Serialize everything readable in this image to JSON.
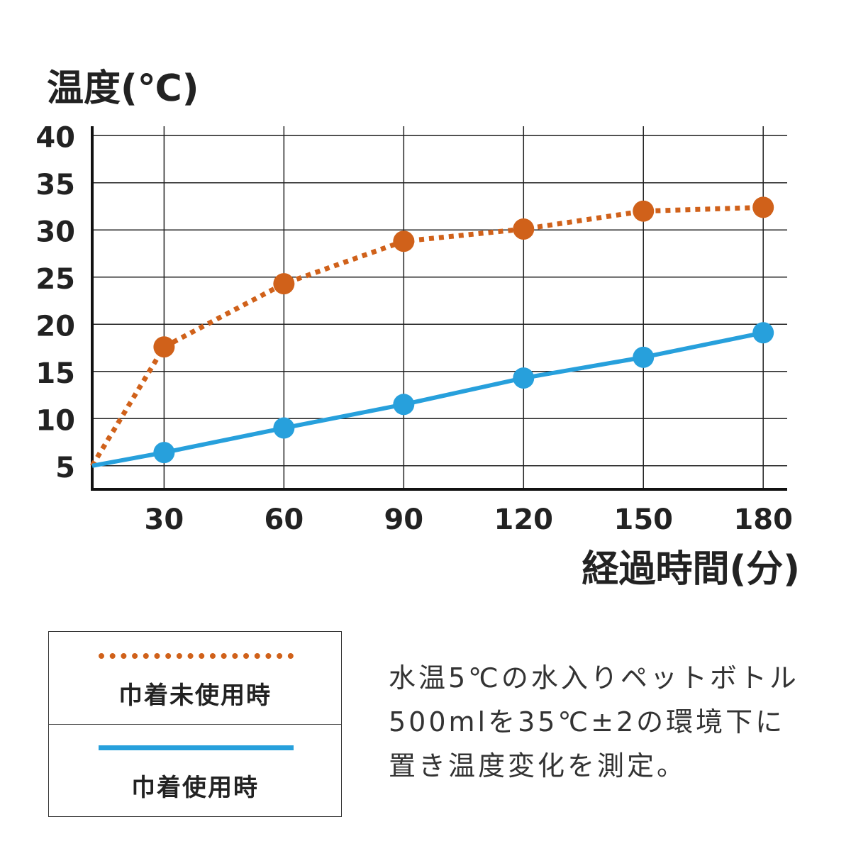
{
  "chart_data": {
    "type": "line",
    "ylabel": "温度(℃)",
    "xlabel": "経過時間(分)",
    "x_ticks": [
      "30",
      "60",
      "90",
      "120",
      "150",
      "180"
    ],
    "y_ticks": [
      "5",
      "10",
      "15",
      "20",
      "25",
      "30",
      "35",
      "40"
    ],
    "xlim": [
      12,
      186
    ],
    "ylim": [
      2.5,
      41
    ],
    "grid": true,
    "legend_placement": "bottom-left",
    "series": [
      {
        "name": "巾着未使用時",
        "style": "dotted",
        "color": "#d0611a",
        "x": [
          12,
          30,
          60,
          90,
          120,
          150,
          180
        ],
        "y": [
          5,
          17.6,
          24.3,
          28.8,
          30.1,
          32.0,
          32.4
        ]
      },
      {
        "name": "巾着使用時",
        "style": "solid",
        "color": "#27a0dc",
        "x": [
          12,
          30,
          60,
          90,
          120,
          150,
          180
        ],
        "y": [
          5,
          6.4,
          9.0,
          11.5,
          14.3,
          16.5,
          19.1
        ]
      }
    ]
  },
  "legend": {
    "item1": "巾着未使用時",
    "item2": "巾着使用時"
  },
  "note": {
    "line1": "水温5℃の水入りペットボトル",
    "line2": "500mlを35℃±2の環境下に",
    "line3": "置き温度変化を測定。"
  }
}
